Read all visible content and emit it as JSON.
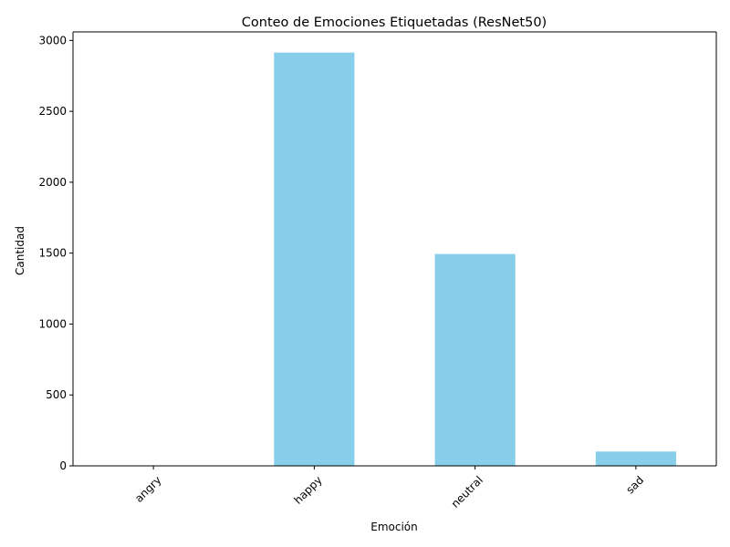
{
  "chart_data": {
    "type": "bar",
    "title": "Conteo de Emociones Etiquetadas (ResNet50)",
    "xlabel": "Emoción",
    "ylabel": "Cantidad",
    "categories": [
      "angry",
      "happy",
      "neutral",
      "sad"
    ],
    "values": [
      3,
      2914,
      1494,
      101
    ],
    "ylim": [
      0,
      3060
    ],
    "yticks": [
      0,
      500,
      1000,
      1500,
      2000,
      2500,
      3000
    ],
    "ytick_labels": [
      "0",
      "500",
      "1000",
      "1500",
      "2000",
      "2500",
      "3000"
    ],
    "xtick_rotation": 45,
    "grid": false,
    "legend": "none",
    "colors": {
      "bar": "#87ceeb",
      "axis": "#000000",
      "text": "#000000"
    }
  }
}
